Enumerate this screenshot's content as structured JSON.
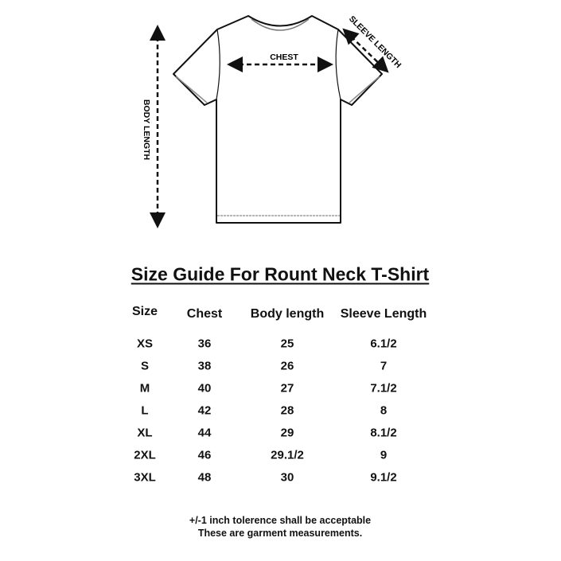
{
  "diagram": {
    "chest_label": "CHEST",
    "sleeve_label": "SLEEVE LENGTH",
    "body_label": "BODY LENGTH"
  },
  "title": "Size Guide For Rount Neck T-Shirt",
  "table": {
    "headers": [
      "Size",
      "Chest",
      "Body length",
      "Sleeve Length"
    ],
    "rows": [
      [
        "XS",
        "36",
        "25",
        "6.1/2"
      ],
      [
        "S",
        "38",
        "26",
        "7"
      ],
      [
        "M",
        "40",
        "27",
        "7.1/2"
      ],
      [
        "L",
        "42",
        "28",
        "8"
      ],
      [
        "XL",
        "44",
        "29",
        "8.1/2"
      ],
      [
        "2XL",
        "46",
        "29.1/2",
        "9"
      ],
      [
        "3XL",
        "48",
        "30",
        "9.1/2"
      ]
    ]
  },
  "footer": {
    "line1": "+/-1 inch tolerence shall be acceptable",
    "line2": "These are garment measurements."
  }
}
